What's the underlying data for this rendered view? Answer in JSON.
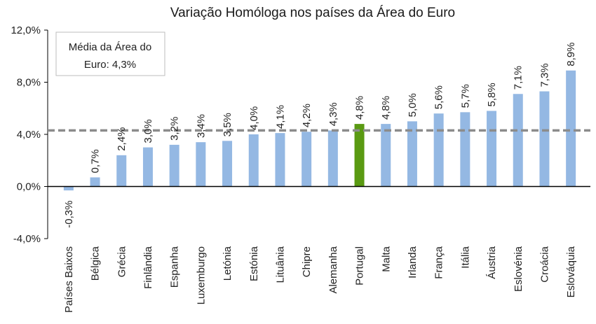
{
  "chart_data": {
    "type": "bar",
    "title": "Variação Homóloga nos países da Área do Euro",
    "categories": [
      "Países Baixos",
      "Bélgica",
      "Grécia",
      "Finlândia",
      "Espanha",
      "Luxemburgo",
      "Letónia",
      "Estónia",
      "Lituânia",
      "Chipre",
      "Alemanha",
      "Portugal",
      "Malta",
      "Irlanda",
      "França",
      "Itália",
      "Áustria",
      "Eslovénia",
      "Croácia",
      "Eslováquia"
    ],
    "values": [
      -0.3,
      0.7,
      2.4,
      3.0,
      3.2,
      3.4,
      3.5,
      4.0,
      4.1,
      4.2,
      4.3,
      4.8,
      4.8,
      5.0,
      5.6,
      5.7,
      5.8,
      7.1,
      7.3,
      8.9
    ],
    "value_labels": [
      "-0,3%",
      "0,7%",
      "2,4%",
      "3,0%",
      "3,2%",
      "3,4%",
      "3,5%",
      "4,0%",
      "4,1%",
      "4,2%",
      "4,3%",
      "4,8%",
      "4,8%",
      "5,0%",
      "5,6%",
      "5,7%",
      "5,8%",
      "7,1%",
      "7,3%",
      "8,9%"
    ],
    "highlight_category": "Portugal",
    "ylim": [
      -4.0,
      12.0
    ],
    "yticks": [
      -4.0,
      0.0,
      4.0,
      8.0,
      12.0
    ],
    "ytick_labels": [
      "-4,0%",
      "0,0%",
      "4,0%",
      "8,0%",
      "12,0%"
    ],
    "reference_line": {
      "value": 4.3,
      "style": "dashed"
    },
    "annotation": {
      "line1": "Média da Área do",
      "line2": "Euro: 4,3%"
    },
    "xlabel": "",
    "ylabel": "",
    "grid": false,
    "colors": {
      "bar": "#94b8e3",
      "highlight": "#5a9a12",
      "reference": "#8c8c8c",
      "axis": "#000000"
    }
  }
}
